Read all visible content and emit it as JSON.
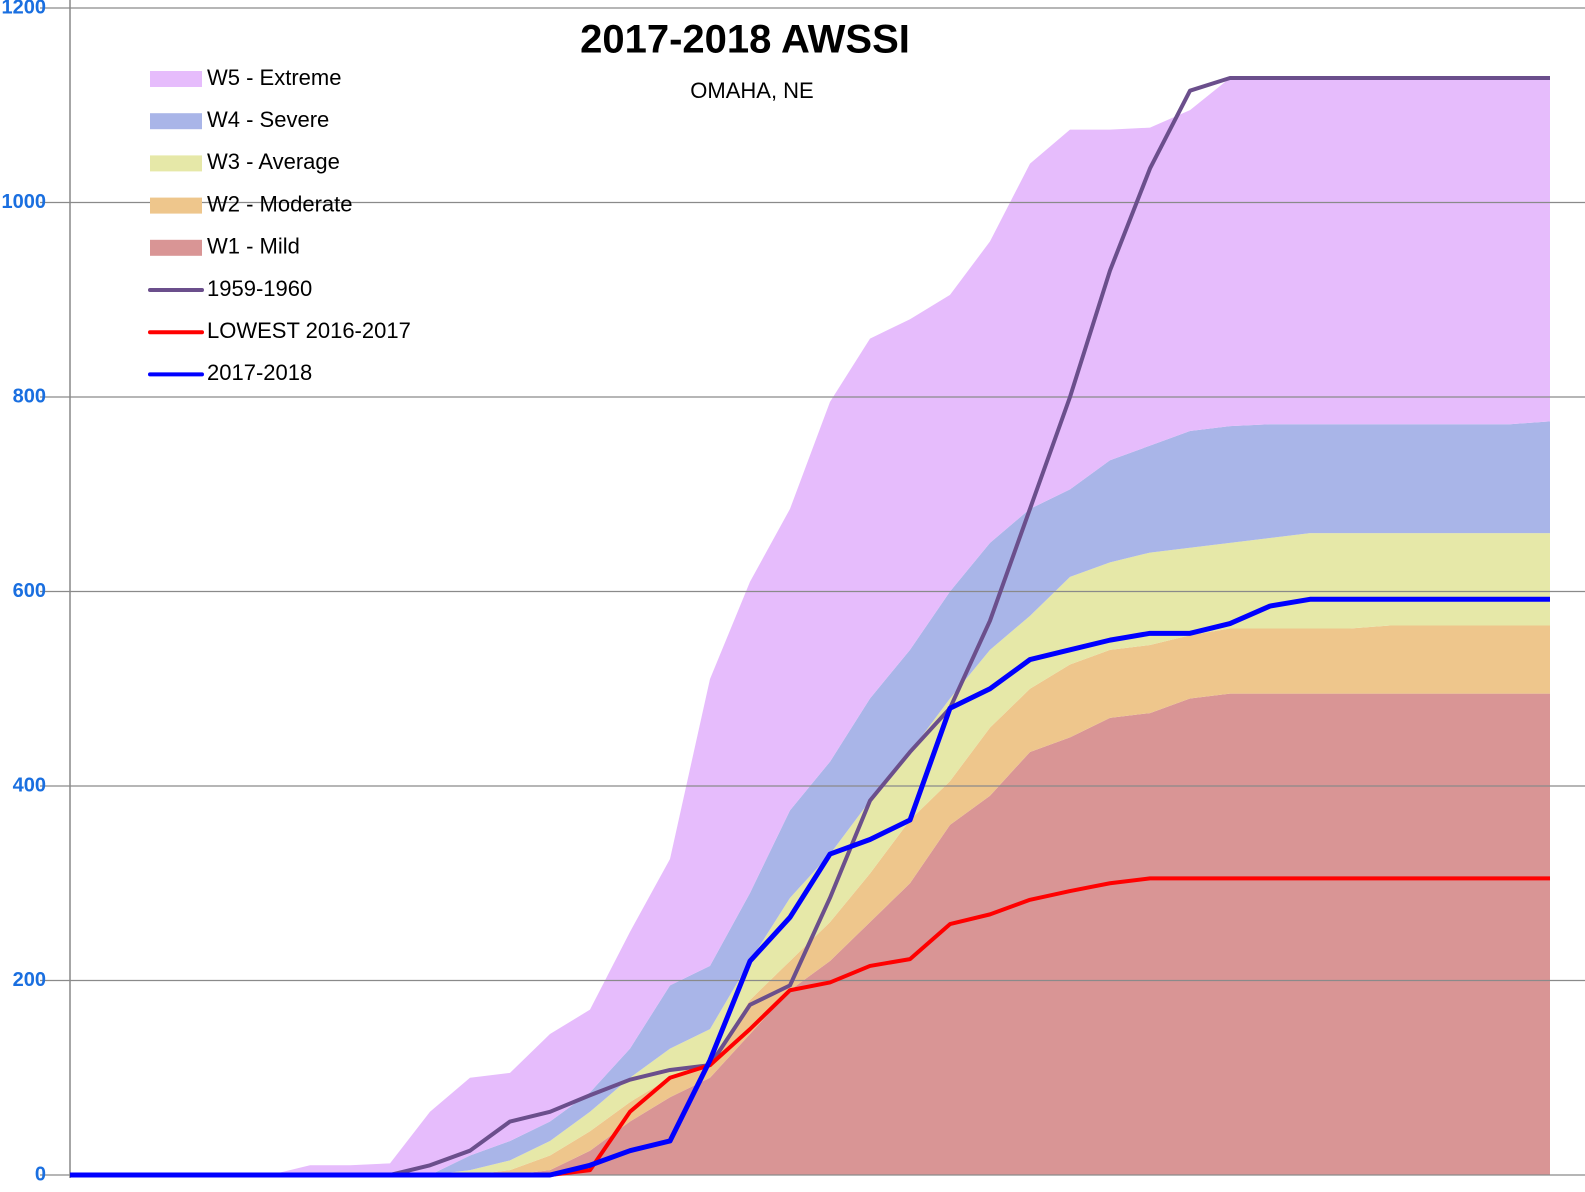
{
  "chart_data": {
    "type": "area",
    "title": "2017-2018 AWSSI",
    "subtitle": "OMAHA, NE",
    "categories": [
      null,
      null,
      null,
      null,
      null,
      null,
      null,
      null,
      null,
      null,
      null,
      null,
      null,
      null,
      null,
      null,
      null,
      null,
      null,
      null,
      null,
      null,
      null,
      null,
      null,
      null,
      null,
      null,
      null,
      null,
      null,
      null,
      null,
      null,
      null,
      null,
      null,
      null
    ],
    "ylim": [
      0,
      1200
    ],
    "yticks": [
      0,
      200,
      400,
      600,
      800,
      1000,
      1200
    ],
    "grid": true,
    "legend": "upper-left",
    "series": [
      {
        "name": "W5 - Extreme",
        "type": "area",
        "color": "#e6bcfc",
        "values": [
          0,
          0,
          0,
          0,
          0,
          0,
          10,
          10,
          12,
          65,
          80,
          70,
          90,
          85,
          120,
          130,
          295,
          320,
          310,
          370,
          370,
          340,
          305,
          310,
          355,
          370,
          340,
          327,
          330,
          358,
          356,
          356,
          356,
          356,
          356,
          356,
          356,
          353
        ]
      },
      {
        "name": "W4 - Severe",
        "type": "area",
        "color": "#a9b5e8",
        "values": [
          0,
          0,
          0,
          0,
          0,
          0,
          0,
          0,
          0,
          0,
          15,
          20,
          20,
          20,
          30,
          65,
          65,
          70,
          90,
          95,
          105,
          105,
          110,
          110,
          110,
          90,
          105,
          110,
          120,
          120,
          117,
          112,
          112,
          112,
          112,
          112,
          112,
          115
        ]
      },
      {
        "name": "W3 - Average",
        "type": "area",
        "color": "#e6e8a8",
        "values": [
          0,
          0,
          0,
          0,
          0,
          0,
          0,
          0,
          0,
          0,
          5,
          10,
          15,
          20,
          25,
          30,
          35,
          40,
          65,
          70,
          75,
          70,
          85,
          80,
          75,
          90,
          90,
          95,
          90,
          88,
          93,
          98,
          98,
          95,
          95,
          95,
          95,
          95
        ]
      },
      {
        "name": "W2 - Moderate",
        "type": "area",
        "color": "#eec68c",
        "values": [
          0,
          0,
          0,
          0,
          0,
          0,
          0,
          0,
          0,
          0,
          0,
          5,
          15,
          20,
          20,
          20,
          15,
          35,
          30,
          40,
          50,
          65,
          45,
          70,
          65,
          75,
          70,
          70,
          65,
          67,
          67,
          67,
          67,
          70,
          70,
          70,
          70,
          70
        ]
      },
      {
        "name": "W1 - Mild",
        "type": "area",
        "color": "#d99595",
        "values": [
          0,
          0,
          0,
          0,
          0,
          0,
          0,
          0,
          0,
          0,
          0,
          0,
          5,
          25,
          55,
          80,
          100,
          145,
          190,
          220,
          260,
          300,
          360,
          390,
          435,
          450,
          470,
          475,
          490,
          495,
          495,
          495,
          495,
          495,
          495,
          495,
          495,
          495
        ]
      },
      {
        "name": "1959-1960",
        "type": "line",
        "color": "#6b4f8c",
        "values": [
          0,
          0,
          0,
          0,
          0,
          0,
          0,
          0,
          0,
          10,
          25,
          55,
          65,
          82,
          98,
          108,
          113,
          175,
          195,
          285,
          385,
          435,
          480,
          570,
          685,
          800,
          930,
          1035,
          1115,
          1128,
          1128,
          1128,
          1128,
          1128,
          1128,
          1128,
          1128,
          1128
        ]
      },
      {
        "name": "LOWEST 2016-2017",
        "type": "line",
        "color": "#ff0000",
        "values": [
          0,
          0,
          0,
          0,
          0,
          0,
          0,
          0,
          0,
          0,
          0,
          0,
          0,
          5,
          65,
          100,
          113,
          150,
          190,
          198,
          215,
          222,
          258,
          268,
          283,
          292,
          300,
          305,
          305,
          305,
          305,
          305,
          305,
          305,
          305,
          305,
          305,
          305
        ]
      },
      {
        "name": "2017-2018",
        "type": "line",
        "color": "#0000ff",
        "values": [
          0,
          0,
          0,
          0,
          0,
          0,
          0,
          0,
          0,
          0,
          0,
          0,
          0,
          10,
          25,
          35,
          118,
          220,
          265,
          330,
          345,
          365,
          480,
          500,
          530,
          540,
          550,
          557,
          557,
          567,
          585,
          592,
          592,
          592,
          592,
          592,
          592,
          592
        ]
      }
    ]
  }
}
